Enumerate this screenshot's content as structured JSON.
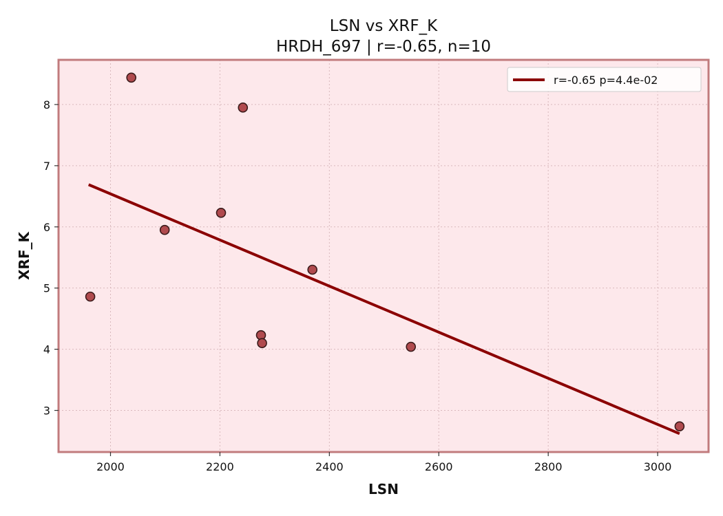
{
  "chart_data": {
    "type": "scatter",
    "title": "LSN vs XRF_K",
    "subtitle": "HRDH_697 | r=-0.65, n=10",
    "xlabel": "LSN",
    "ylabel": "XRF_K",
    "xlim": [
      1905,
      3093
    ],
    "ylim": [
      2.32,
      8.73
    ],
    "xticks": [
      2000,
      2200,
      2400,
      2600,
      2800,
      3000
    ],
    "yticks": [
      3,
      4,
      5,
      6,
      7,
      8
    ],
    "grid": true,
    "legend_position": "top-right",
    "points": [
      {
        "x": 1963,
        "y": 4.86
      },
      {
        "x": 2038,
        "y": 8.44
      },
      {
        "x": 2099,
        "y": 5.95
      },
      {
        "x": 2202,
        "y": 6.23
      },
      {
        "x": 2242,
        "y": 7.95
      },
      {
        "x": 2275,
        "y": 4.23
      },
      {
        "x": 2277,
        "y": 4.1
      },
      {
        "x": 2369,
        "y": 5.3
      },
      {
        "x": 2549,
        "y": 4.04
      },
      {
        "x": 3040,
        "y": 2.74
      }
    ],
    "fit_line": {
      "label": "r=-0.65  p=4.4e-02",
      "x": [
        1960,
        3040
      ],
      "y": [
        6.69,
        2.62
      ]
    },
    "colors": {
      "plot_background": "#fde8eb",
      "frame": "#c17b7d",
      "marker_fill": "#b04a4e",
      "marker_edge": "#3a1a1a",
      "fit_line": "#8b0000"
    }
  }
}
